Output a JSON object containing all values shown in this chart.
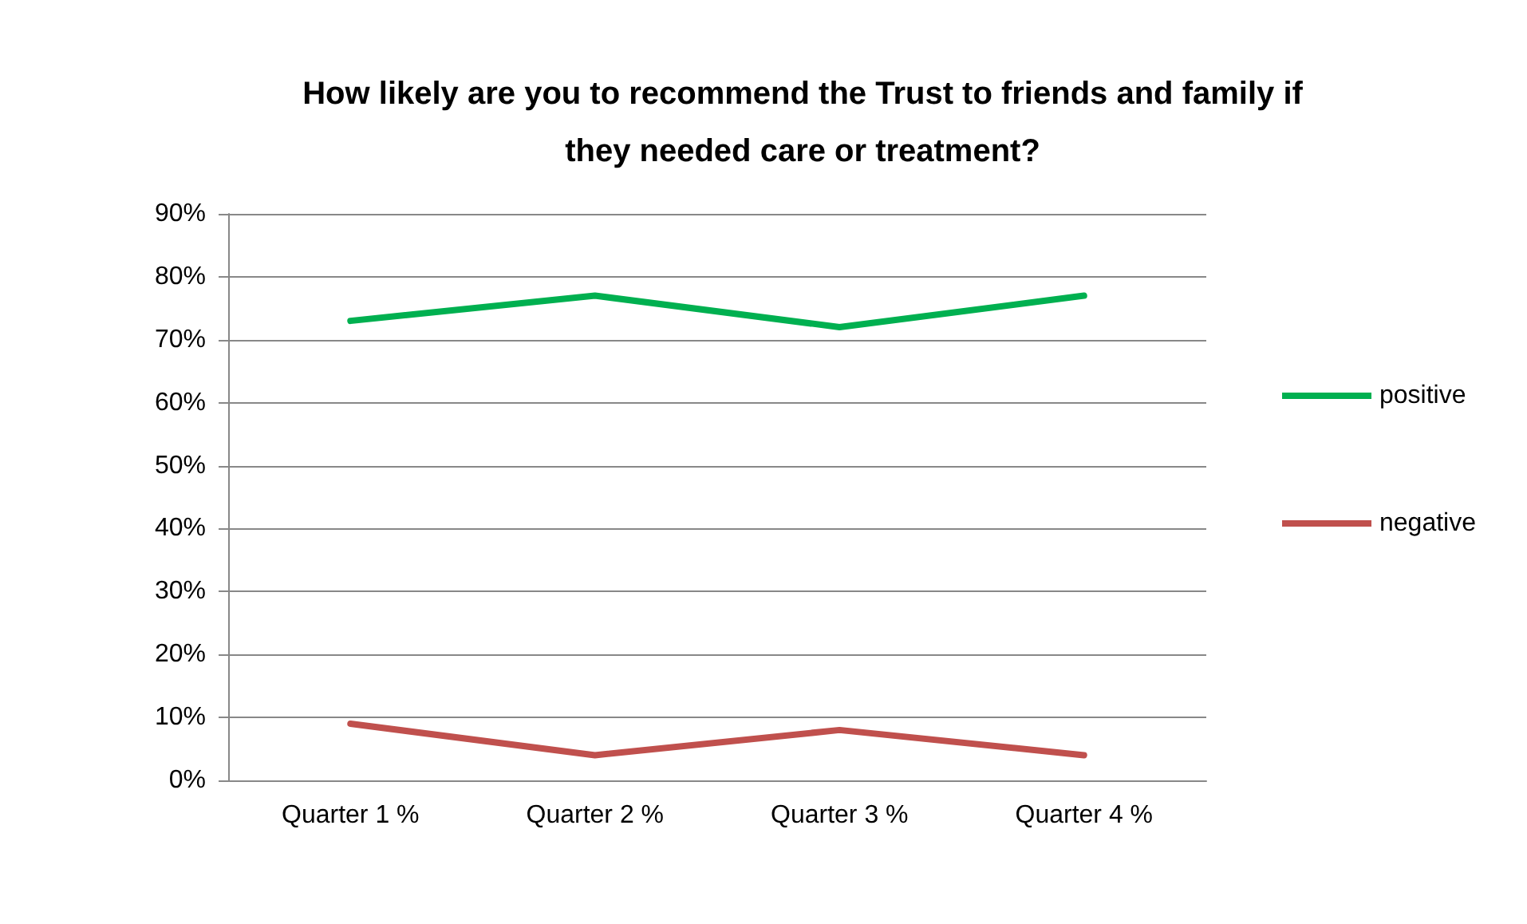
{
  "chart_data": {
    "type": "line",
    "title": "How likely are you to recommend the Trust to friends and family if\nthey needed care or treatment?",
    "categories": [
      "Quarter 1 %",
      "Quarter 2 %",
      "Quarter 3 %",
      "Quarter 4 %"
    ],
    "series": [
      {
        "name": "positive",
        "color": "#00b050",
        "values": [
          73,
          77,
          72,
          77
        ]
      },
      {
        "name": "negative",
        "color": "#c0504d",
        "values": [
          9,
          4,
          8,
          4
        ]
      }
    ],
    "ylim": [
      0,
      90
    ],
    "yticks": [
      {
        "value": 0,
        "label": "0%"
      },
      {
        "value": 10,
        "label": "10%"
      },
      {
        "value": 20,
        "label": "20%"
      },
      {
        "value": 30,
        "label": "30%"
      },
      {
        "value": 40,
        "label": "40%"
      },
      {
        "value": 50,
        "label": "50%"
      },
      {
        "value": 60,
        "label": "60%"
      },
      {
        "value": 70,
        "label": "70%"
      },
      {
        "value": 80,
        "label": "80%"
      },
      {
        "value": 90,
        "label": "90%"
      }
    ],
    "grid": "y",
    "legend": "right",
    "marker": "none",
    "line_style": "solid"
  }
}
